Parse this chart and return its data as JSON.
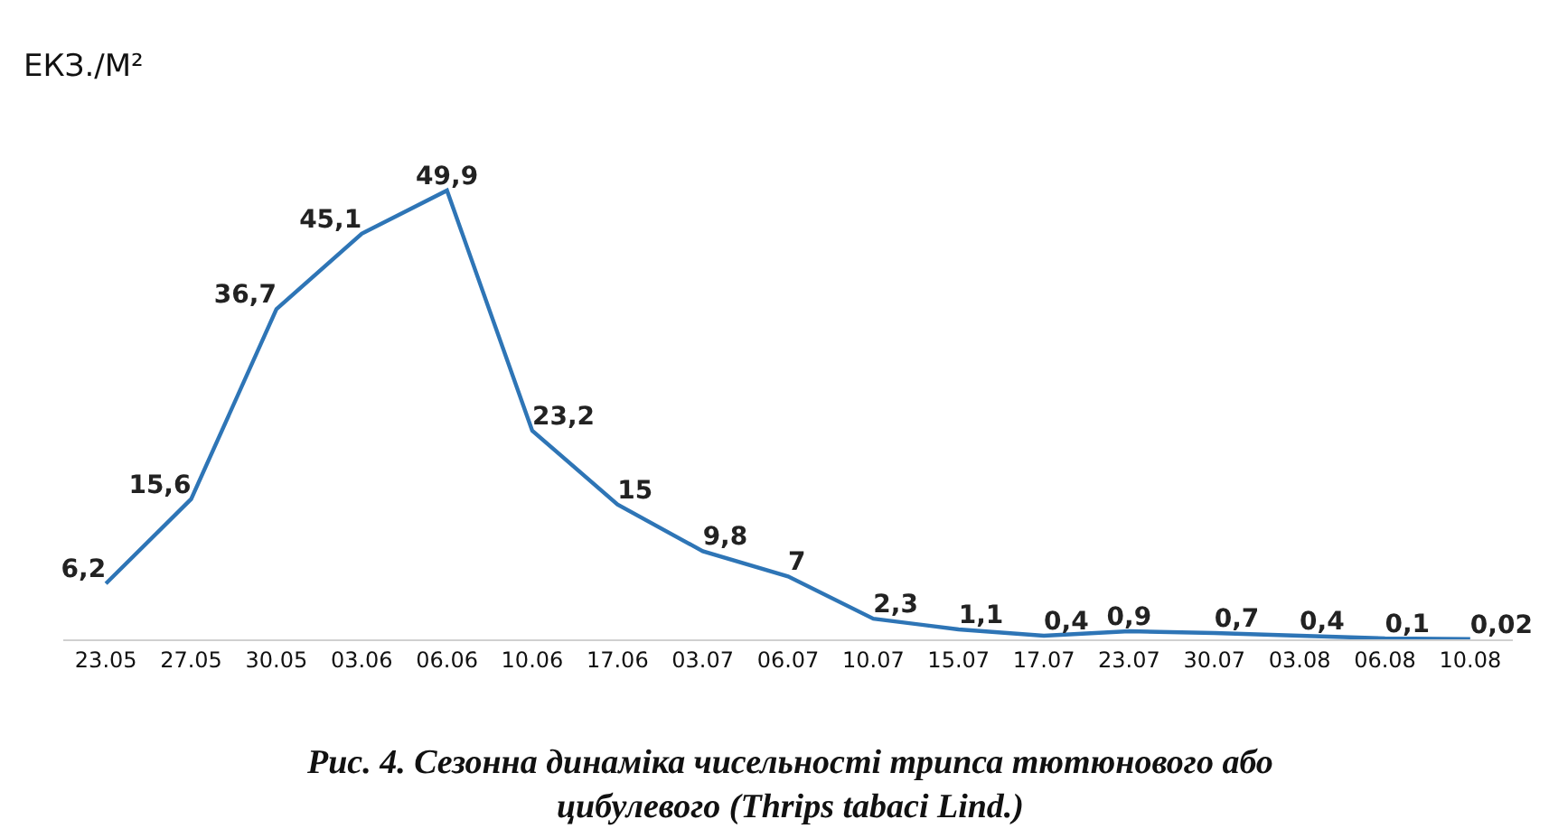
{
  "chart_data": {
    "type": "line",
    "ylabel": "ЕКЗ./М²",
    "categories": [
      "23.05",
      "27.05",
      "30.05",
      "03.06",
      "06.06",
      "10.06",
      "17.06",
      "03.07",
      "06.07",
      "10.07",
      "15.07",
      "17.07",
      "23.07",
      "30.07",
      "03.08",
      "06.08",
      "10.08"
    ],
    "series": [
      {
        "color": "#2e75b6",
        "values": [
          6.2,
          15.6,
          36.7,
          45.1,
          49.9,
          23.2,
          15,
          9.8,
          7,
          2.3,
          1.1,
          0.4,
          0.9,
          0.7,
          0.4,
          0.1,
          0.02
        ],
        "value_labels": [
          "6,2",
          "15,6",
          "36,7",
          "45,1",
          "49,9",
          "23,2",
          "15",
          "9,8",
          "7",
          "2,3",
          "1,1",
          "0,4",
          "0,9",
          "0,7",
          "0,4",
          "0,1",
          "0,02"
        ]
      }
    ],
    "marker": "none",
    "line_style": "solid",
    "grid": false,
    "annotations": [
      "Рис. 4. Сезонна динаміка чисельності трипса тютюнового або\nцибулевого (Thrips tabaci Lind.)"
    ]
  }
}
